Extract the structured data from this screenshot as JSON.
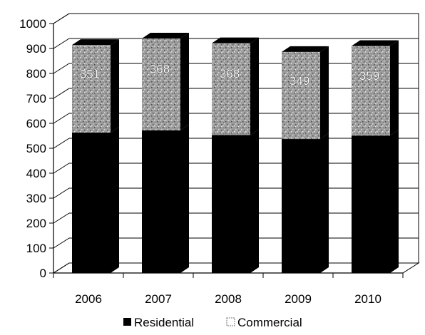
{
  "chart_data": {
    "type": "bar",
    "stacked": true,
    "three_d": true,
    "categories": [
      "2006",
      "2007",
      "2008",
      "2009",
      "2010"
    ],
    "series": [
      {
        "name": "Residential",
        "values": [
          563,
          572,
          553,
          537,
          551
        ],
        "color": "#000000"
      },
      {
        "name": "Commercial",
        "values": [
          351,
          368,
          368,
          349,
          359
        ],
        "color": "#9a9a9a",
        "data_labels": [
          "351",
          "368",
          "368",
          "349",
          "359"
        ]
      }
    ],
    "ylim": [
      0,
      1000
    ],
    "yticks": [
      "0",
      "100",
      "200",
      "300",
      "400",
      "500",
      "600",
      "700",
      "800",
      "900",
      "1000"
    ],
    "title": "",
    "xlabel": "",
    "ylabel": "",
    "grid": true,
    "legend_position": "bottom"
  }
}
